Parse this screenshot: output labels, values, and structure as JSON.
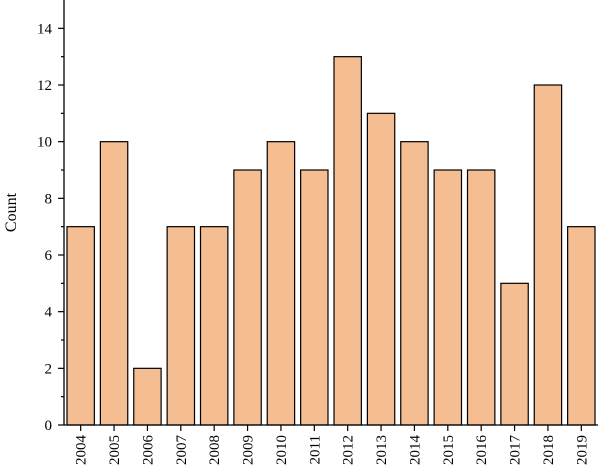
{
  "chart_data": {
    "type": "bar",
    "title": "",
    "xlabel": "",
    "ylabel": "Count",
    "ylim": [
      0,
      15
    ],
    "yticks": [
      0,
      2,
      4,
      6,
      8,
      10,
      12,
      14
    ],
    "categories": [
      "2004",
      "2005",
      "2006",
      "2007",
      "2008",
      "2009",
      "2010",
      "2011",
      "2012",
      "2013",
      "2014",
      "2015",
      "2016",
      "2017",
      "2018",
      "2019"
    ],
    "values": [
      7,
      10,
      2,
      7,
      7,
      9,
      10,
      9,
      13,
      11,
      10,
      9,
      9,
      5,
      12,
      7
    ],
    "bar_color": "#f5bd92",
    "edge_color": "#000000",
    "grid": false,
    "legend": "none"
  }
}
